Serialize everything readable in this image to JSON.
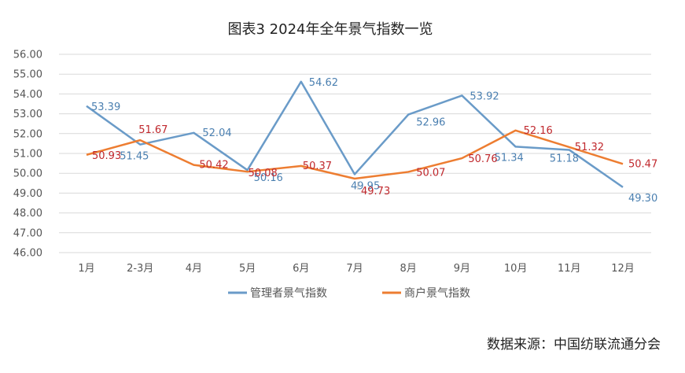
{
  "chart_data": {
    "type": "line",
    "title": "图表3 2024年全年景气指数一览",
    "categories": [
      "1月",
      "2-3月",
      "4月",
      "5月",
      "6月",
      "7月",
      "8月",
      "9月",
      "10月",
      "11月",
      "12月"
    ],
    "series": [
      {
        "name": "管理者景气指数",
        "color": "#6a9bc8",
        "label_color": "#4a7fb0",
        "values": [
          53.39,
          51.45,
          52.04,
          50.16,
          54.62,
          49.95,
          52.96,
          53.92,
          51.34,
          51.18,
          49.3
        ]
      },
      {
        "name": "商户景气指数",
        "color": "#ed7d31",
        "label_color": "#c0282d",
        "values": [
          50.93,
          51.67,
          50.42,
          50.08,
          50.37,
          49.73,
          50.07,
          50.76,
          52.16,
          51.32,
          50.47
        ]
      }
    ],
    "ylim": [
      46.0,
      56.0
    ],
    "yticks": [
      "46.00",
      "47.00",
      "48.00",
      "49.00",
      "50.00",
      "51.00",
      "52.00",
      "53.00",
      "54.00",
      "55.00",
      "56.00"
    ],
    "grid": true,
    "legend": "bottom",
    "source": "数据来源：中国纺联流通分会"
  }
}
